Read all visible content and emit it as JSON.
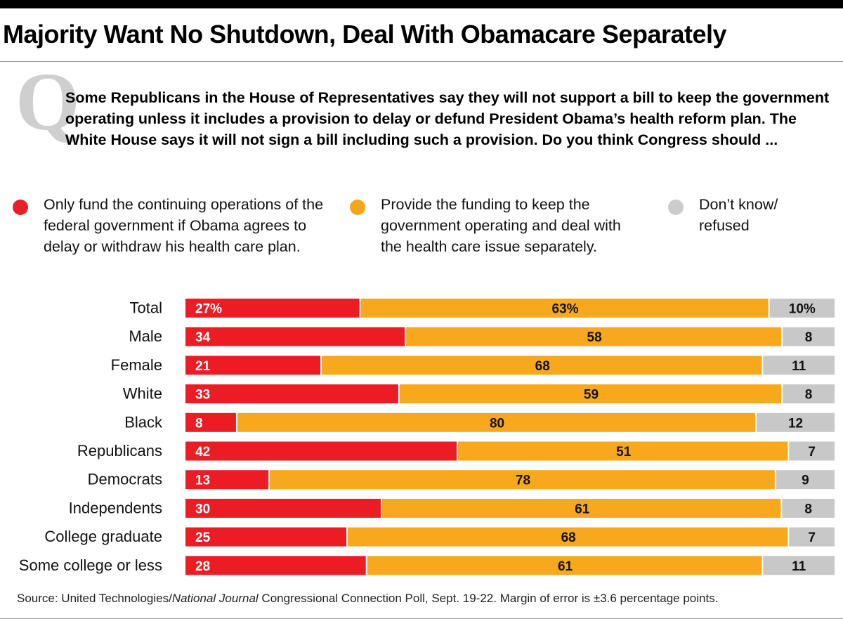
{
  "header": {
    "title": "Majority Want No Shutdown, Deal With Obamacare Separately",
    "q_letter": "Q",
    "question": "Some Republicans in the House of Representatives say they will not support a bill to keep the government operating unless it includes a provision to delay or defund President Obama’s health reform plan. The White House says it will not sign a bill including such a provision.  Do you think Congress should ..."
  },
  "legend": [
    {
      "label": "Only fund the continuing operations of the federal government if Obama agrees to delay or withdraw his health care plan.",
      "color": "#e8202a"
    },
    {
      "label": "Provide the funding to keep the government operating and deal with the health care issue separately.",
      "color": "#f5a51e"
    },
    {
      "label": "Don’t know/ refused",
      "color": "#cccccc"
    }
  ],
  "colors": {
    "red": "#ec1c24",
    "orange": "#f7a81c",
    "gray": "#c8c8c8"
  },
  "chart_data": {
    "type": "bar",
    "orientation": "horizontal",
    "stacked": true,
    "normalized_to_100": true,
    "categories": [
      "Total",
      "Male",
      "Female",
      "White",
      "Black",
      "Republicans",
      "Democrats",
      "Independents",
      "College graduate",
      "Some college or less"
    ],
    "series": [
      {
        "name": "Only fund the continuing operations of the federal government if Obama agrees to delay or withdraw his health care plan.",
        "color": "#ec1c24",
        "values": [
          27,
          34,
          21,
          33,
          8,
          42,
          13,
          30,
          25,
          28
        ]
      },
      {
        "name": "Provide the funding to keep the government operating and deal with the health care issue separately.",
        "color": "#f7a81c",
        "values": [
          63,
          58,
          68,
          59,
          80,
          51,
          78,
          61,
          68,
          61
        ]
      },
      {
        "name": "Don’t know/ refused",
        "color": "#c8c8c8",
        "values": [
          10,
          8,
          11,
          8,
          12,
          7,
          9,
          8,
          7,
          11
        ]
      }
    ],
    "first_row_suffix": "%",
    "xlim": [
      0,
      100
    ],
    "grid": false
  },
  "source": {
    "prefix": "Source: United Technologies/",
    "italic": "National Journal",
    "suffix": " Congressional Connection Poll,  Sept. 19-22. Margin of error is ±3.6 percentage points."
  }
}
